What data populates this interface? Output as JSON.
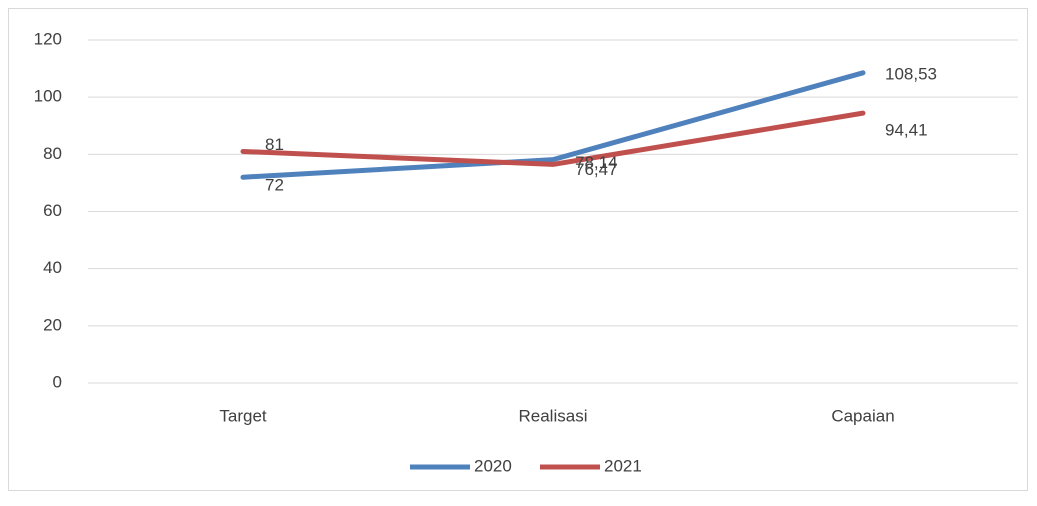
{
  "chart_data": {
    "type": "line",
    "categories": [
      "Target",
      "Realisasi",
      "Capaian"
    ],
    "series": [
      {
        "name": "2020",
        "color": "#4f81bd",
        "values": [
          72,
          78.14,
          108.53
        ],
        "value_labels": [
          "72",
          "78,14",
          "108,53"
        ]
      },
      {
        "name": "2021",
        "color": "#c0504d",
        "values": [
          81,
          76.47,
          94.41
        ],
        "value_labels": [
          "81",
          "76,47",
          "94,41"
        ]
      }
    ],
    "ylim": [
      0,
      120
    ],
    "yticks": [
      0,
      20,
      40,
      60,
      80,
      100,
      120
    ],
    "grid": true,
    "legend": "bottom"
  }
}
